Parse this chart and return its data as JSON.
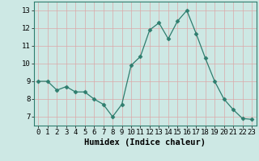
{
  "x": [
    0,
    1,
    2,
    3,
    4,
    5,
    6,
    7,
    8,
    9,
    10,
    11,
    12,
    13,
    14,
    15,
    16,
    17,
    18,
    19,
    20,
    21,
    22,
    23
  ],
  "y": [
    9.0,
    9.0,
    8.5,
    8.7,
    8.4,
    8.4,
    8.0,
    7.7,
    7.0,
    7.7,
    9.9,
    10.4,
    11.9,
    12.3,
    11.4,
    12.4,
    13.0,
    11.7,
    10.3,
    9.0,
    8.0,
    7.4,
    6.9,
    6.85
  ],
  "line_color": "#2e7d6e",
  "marker": "D",
  "marker_size": 2.5,
  "bg_color": "#cde8e4",
  "grid_color": "#dba8a8",
  "xlabel": "Humidex (Indice chaleur)",
  "ylabel": "",
  "ylim": [
    6.5,
    13.5
  ],
  "xlim": [
    -0.5,
    23.5
  ],
  "yticks": [
    7,
    8,
    9,
    10,
    11,
    12,
    13
  ],
  "xticks": [
    0,
    1,
    2,
    3,
    4,
    5,
    6,
    7,
    8,
    9,
    10,
    11,
    12,
    13,
    14,
    15,
    16,
    17,
    18,
    19,
    20,
    21,
    22,
    23
  ],
  "tick_fontsize": 6.5,
  "xlabel_fontsize": 7.5
}
